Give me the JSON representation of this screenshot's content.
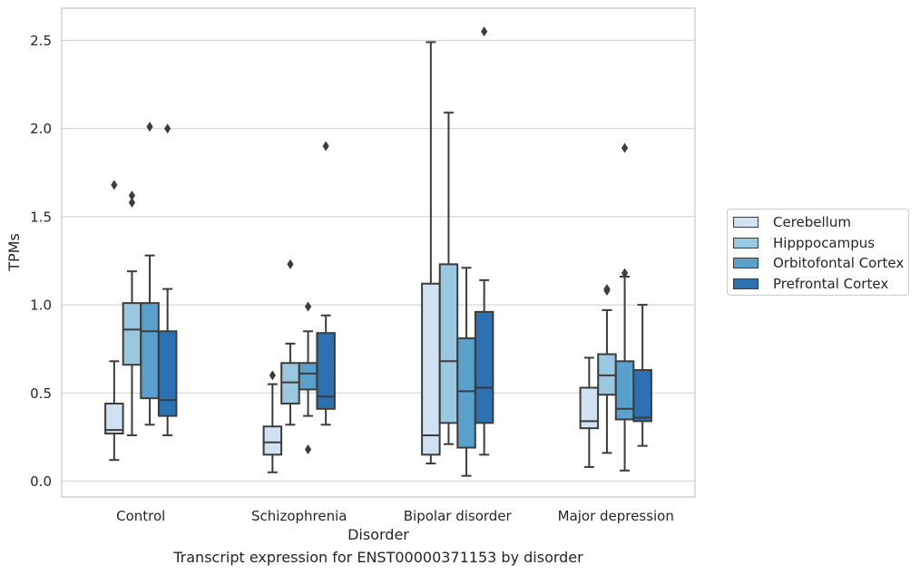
{
  "caption": "Transcript expression for ENST00000371153 by disorder",
  "chart_data": {
    "type": "box",
    "xlabel": "Disorder",
    "ylabel": "TPMs",
    "categories": [
      "Control",
      "Schizophrenia",
      "Bipolar disorder",
      "Major depression"
    ],
    "ylim": [
      -0.08,
      2.68
    ],
    "yticks": [
      "0.0",
      "0.5",
      "1.0",
      "1.5",
      "2.0",
      "2.5"
    ],
    "ytick_values": [
      0.0,
      0.5,
      1.0,
      1.5,
      2.0,
      2.5
    ],
    "grid": "horizontal",
    "legend_position": "right",
    "series": [
      {
        "name": "Cerebellum",
        "color": "#d0e2f2",
        "boxes": [
          {
            "whislo": 0.12,
            "q1": 0.27,
            "med": 0.29,
            "q3": 0.44,
            "whishi": 0.68,
            "fliers": [
              1.68
            ]
          },
          {
            "whislo": 0.05,
            "q1": 0.15,
            "med": 0.22,
            "q3": 0.31,
            "whishi": 0.55,
            "fliers": [
              0.6
            ]
          },
          {
            "whislo": 0.1,
            "q1": 0.15,
            "med": 0.26,
            "q3": 1.12,
            "whishi": 2.49,
            "fliers": []
          },
          {
            "whislo": 0.08,
            "q1": 0.3,
            "med": 0.34,
            "q3": 0.53,
            "whishi": 0.7,
            "fliers": []
          }
        ]
      },
      {
        "name": "Hipppocampus",
        "color": "#9ac8e0",
        "boxes": [
          {
            "whislo": 0.26,
            "q1": 0.66,
            "med": 0.86,
            "q3": 1.01,
            "whishi": 1.19,
            "fliers": [
              1.58,
              1.62
            ]
          },
          {
            "whislo": 0.32,
            "q1": 0.44,
            "med": 0.56,
            "q3": 0.67,
            "whishi": 0.78,
            "fliers": [
              1.23
            ]
          },
          {
            "whislo": 0.21,
            "q1": 0.33,
            "med": 0.68,
            "q3": 1.23,
            "whishi": 2.09,
            "fliers": []
          },
          {
            "whislo": 0.16,
            "q1": 0.49,
            "med": 0.6,
            "q3": 0.72,
            "whishi": 0.97,
            "fliers": [
              1.08,
              1.09
            ]
          }
        ]
      },
      {
        "name": "Orbitofontal Cortex",
        "color": "#5aa0cd",
        "boxes": [
          {
            "whislo": 0.32,
            "q1": 0.47,
            "med": 0.85,
            "q3": 1.01,
            "whishi": 1.28,
            "fliers": [
              2.01
            ]
          },
          {
            "whislo": 0.37,
            "q1": 0.52,
            "med": 0.61,
            "q3": 0.67,
            "whishi": 0.85,
            "fliers": [
              0.99,
              0.18
            ]
          },
          {
            "whislo": 0.03,
            "q1": 0.19,
            "med": 0.51,
            "q3": 0.81,
            "whishi": 1.21,
            "fliers": []
          },
          {
            "whislo": 0.06,
            "q1": 0.35,
            "med": 0.41,
            "q3": 0.68,
            "whishi": 1.16,
            "fliers": [
              1.18,
              1.89
            ]
          }
        ]
      },
      {
        "name": "Prefrontal Cortex",
        "color": "#2c71b1",
        "boxes": [
          {
            "whislo": 0.26,
            "q1": 0.37,
            "med": 0.46,
            "q3": 0.85,
            "whishi": 1.09,
            "fliers": [
              2.0
            ]
          },
          {
            "whislo": 0.32,
            "q1": 0.41,
            "med": 0.48,
            "q3": 0.84,
            "whishi": 0.94,
            "fliers": [
              1.9
            ]
          },
          {
            "whislo": 0.15,
            "q1": 0.33,
            "med": 0.53,
            "q3": 0.96,
            "whishi": 1.14,
            "fliers": [
              2.55
            ]
          },
          {
            "whislo": 0.2,
            "q1": 0.34,
            "med": 0.36,
            "q3": 0.63,
            "whishi": 1.0,
            "fliers": []
          }
        ]
      }
    ]
  }
}
